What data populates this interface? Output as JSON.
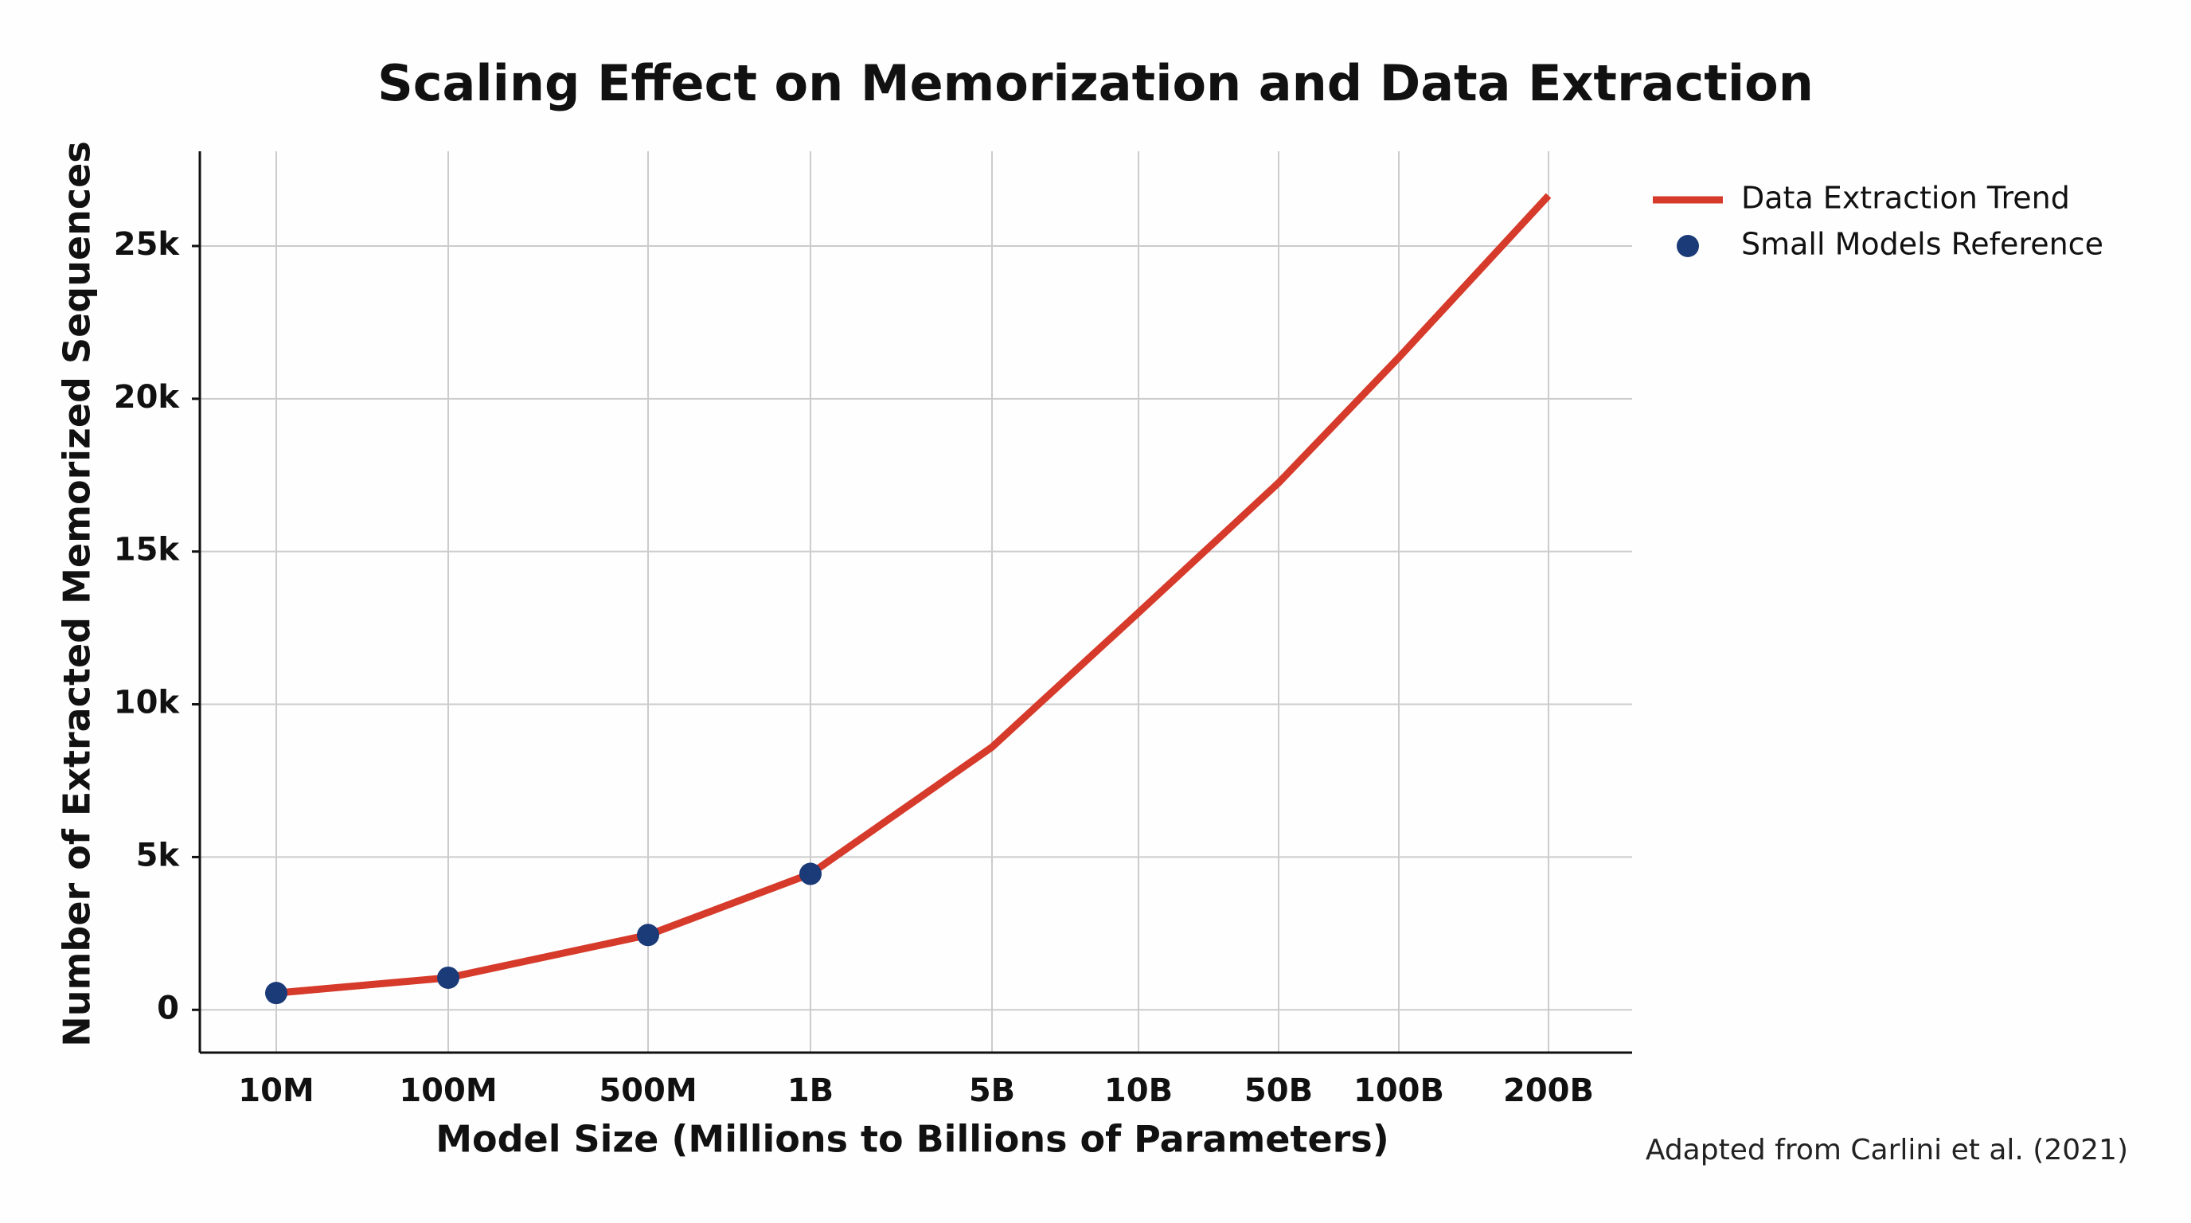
{
  "chart_data": {
    "type": "line",
    "title": "Scaling Effect on Memorization and Data Extraction",
    "x_label": "Model Size (Millions to Billions of Parameters)",
    "y_label": "Number of Extracted Memorized Sequences",
    "annotation": "Adapted from Carlini et al. (2021)",
    "categories": [
      "10M",
      "100M",
      "500M",
      "1B",
      "5B",
      "10B",
      "50B",
      "100B",
      "200B"
    ],
    "series": [
      {
        "name": "Data Extraction Trend",
        "color": "#d63a2a",
        "style": "line",
        "values": [
          550,
          1050,
          2450,
          4450,
          8600,
          13000,
          17250,
          21350,
          26650
        ]
      },
      {
        "name": "Small Models Reference",
        "color": "#1a3a78",
        "style": "markers",
        "values": [
          550,
          1050,
          2450,
          4450,
          null,
          null,
          null,
          null,
          null
        ]
      }
    ],
    "ylim": [
      -1400,
      28100
    ],
    "yticks": [
      0,
      {
        "value": 5000,
        "label": "5k"
      },
      {
        "value": 10000,
        "label": "10k"
      },
      {
        "value": 15000,
        "label": "15k"
      },
      {
        "value": 20000,
        "label": "20k"
      },
      {
        "value": 25000,
        "label": "25k"
      }
    ],
    "grid": true,
    "legend": "upper right outside"
  }
}
